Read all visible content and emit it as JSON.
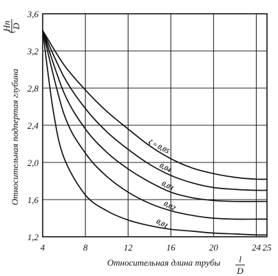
{
  "chart_data": {
    "type": "line",
    "xlabel": "Относительная длина трубы",
    "xlabel_symbol_top": "l",
    "xlabel_symbol_bottom": "D",
    "ylabel": "Относительная подпертая глубина",
    "ylabel_symbol_top": "Hп",
    "ylabel_symbol_bottom": "D",
    "xlim": [
      4,
      25
    ],
    "ylim": [
      1.2,
      3.6
    ],
    "x_ticks": [
      {
        "value": 4,
        "label": "4"
      },
      {
        "value": 8,
        "label": "8"
      },
      {
        "value": 12,
        "label": "12"
      },
      {
        "value": 16,
        "label": "16"
      },
      {
        "value": 20,
        "label": "20"
      },
      {
        "value": 24,
        "label": "24"
      },
      {
        "value": 25,
        "label": "25"
      }
    ],
    "y_ticks": [
      {
        "value": 1.2,
        "label": "1,2"
      },
      {
        "value": 1.6,
        "label": "1,6"
      },
      {
        "value": 2.0,
        "label": "2,0"
      },
      {
        "value": 2.4,
        "label": "2,4"
      },
      {
        "value": 2.8,
        "label": "2,8"
      },
      {
        "value": 3.2,
        "label": "3,2"
      },
      {
        "value": 3.6,
        "label": "3,6"
      }
    ],
    "grid": true,
    "series": [
      {
        "name": "ζ = 0,05",
        "x": [
          4,
          6,
          8,
          10,
          12,
          14,
          16,
          18,
          20,
          22,
          24,
          25
        ],
        "y": [
          3.42,
          3.05,
          2.78,
          2.55,
          2.36,
          2.18,
          2.04,
          1.94,
          1.88,
          1.84,
          1.82,
          1.82
        ]
      },
      {
        "name": "0,04",
        "x": [
          4,
          6,
          8,
          10,
          12,
          14,
          16,
          18,
          20,
          22,
          24,
          25
        ],
        "y": [
          3.42,
          2.92,
          2.58,
          2.33,
          2.14,
          1.98,
          1.86,
          1.78,
          1.73,
          1.71,
          1.7,
          1.7
        ]
      },
      {
        "name": "0,03",
        "x": [
          4,
          6,
          8,
          10,
          12,
          14,
          16,
          18,
          20,
          22,
          24,
          25
        ],
        "y": [
          3.42,
          2.75,
          2.36,
          2.11,
          1.93,
          1.79,
          1.68,
          1.62,
          1.59,
          1.58,
          1.58,
          1.58
        ]
      },
      {
        "name": "0,02",
        "x": [
          4,
          6,
          8,
          10,
          12,
          14,
          16,
          18,
          20,
          22,
          24,
          25
        ],
        "y": [
          3.42,
          2.52,
          2.1,
          1.85,
          1.68,
          1.56,
          1.48,
          1.43,
          1.4,
          1.39,
          1.39,
          1.39
        ]
      },
      {
        "name": "0,01",
        "x": [
          4,
          5,
          6,
          8,
          10,
          12,
          14,
          16,
          18,
          20,
          22,
          24,
          25
        ],
        "y": [
          3.42,
          2.55,
          2.05,
          1.65,
          1.48,
          1.38,
          1.32,
          1.28,
          1.26,
          1.24,
          1.23,
          1.22,
          1.22
        ]
      }
    ]
  }
}
